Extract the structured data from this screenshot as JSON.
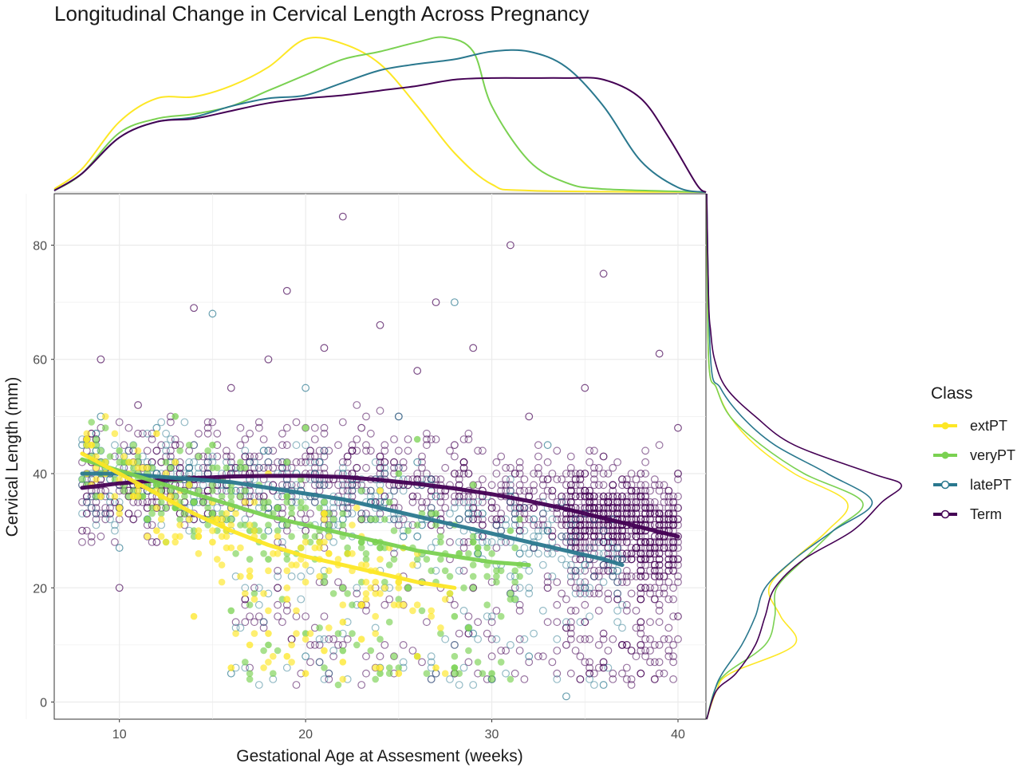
{
  "chart_data": {
    "type": "scatter",
    "title": "Longitudinal Change in Cervical Length Across Pregnancy",
    "xlabel": "Gestational Age at Assesment (weeks)",
    "ylabel": "Cervical Length (mm)",
    "xlim": [
      6.5,
      41.5
    ],
    "ylim": [
      -3,
      89
    ],
    "x_ticks": [
      10,
      20,
      30,
      40
    ],
    "y_ticks": [
      0,
      20,
      40,
      60,
      80
    ],
    "grid": true,
    "legend": {
      "title": "Class",
      "placement": "right",
      "entries": [
        "extPT",
        "veryPT",
        "latePT",
        "Term"
      ]
    },
    "series": [
      {
        "name": "extPT",
        "color": "#fde725",
        "point_style": "filled",
        "trend": [
          [
            8,
            43.5
          ],
          [
            10,
            40
          ],
          [
            12,
            36.5
          ],
          [
            14,
            33
          ],
          [
            16,
            30
          ],
          [
            18,
            27.5
          ],
          [
            20,
            25.5
          ],
          [
            22,
            24
          ],
          [
            24,
            22.5
          ],
          [
            26,
            21
          ],
          [
            28,
            20
          ]
        ],
        "sample_points": [
          [
            9,
            36
          ],
          [
            10,
            34
          ],
          [
            11,
            38
          ],
          [
            12,
            30
          ],
          [
            13,
            42
          ],
          [
            14,
            15
          ],
          [
            15,
            28
          ],
          [
            16,
            6
          ],
          [
            17,
            10
          ],
          [
            18,
            12
          ],
          [
            19,
            8
          ],
          [
            20,
            5
          ],
          [
            21,
            9
          ],
          [
            22,
            7
          ],
          [
            23,
            11
          ],
          [
            24,
            6
          ],
          [
            25,
            5
          ],
          [
            26,
            8
          ],
          [
            27,
            6
          ],
          [
            12,
            47
          ],
          [
            15,
            35
          ],
          [
            18,
            40
          ],
          [
            21,
            33
          ],
          [
            24,
            37
          ],
          [
            17,
            22
          ],
          [
            19,
            18
          ],
          [
            22,
            14
          ]
        ],
        "x_density": [
          [
            6.5,
            0.02
          ],
          [
            8,
            0.15
          ],
          [
            10,
            0.45
          ],
          [
            12,
            0.6
          ],
          [
            14,
            0.61
          ],
          [
            16,
            0.68
          ],
          [
            18,
            0.8
          ],
          [
            20,
            0.98
          ],
          [
            22,
            0.95
          ],
          [
            24,
            0.82
          ],
          [
            26,
            0.55
          ],
          [
            28,
            0.25
          ],
          [
            30,
            0.05
          ],
          [
            32,
            0.01
          ],
          [
            41.5,
            0
          ]
        ],
        "y_density": [
          [
            -3,
            0
          ],
          [
            2,
            0.05
          ],
          [
            5,
            0.12
          ],
          [
            10,
            0.45
          ],
          [
            15,
            0.38
          ],
          [
            20,
            0.32
          ],
          [
            25,
            0.45
          ],
          [
            30,
            0.62
          ],
          [
            35,
            0.72
          ],
          [
            40,
            0.45
          ],
          [
            45,
            0.25
          ],
          [
            50,
            0.12
          ],
          [
            55,
            0.05
          ],
          [
            60,
            0.01
          ],
          [
            89,
            0
          ]
        ]
      },
      {
        "name": "veryPT",
        "color": "#7ad151",
        "point_style": "filled",
        "trend": [
          [
            8,
            42.5
          ],
          [
            10,
            40.5
          ],
          [
            12,
            38.5
          ],
          [
            14,
            36.5
          ],
          [
            16,
            34.5
          ],
          [
            18,
            32.5
          ],
          [
            20,
            31
          ],
          [
            22,
            29.5
          ],
          [
            24,
            28
          ],
          [
            26,
            26.5
          ],
          [
            28,
            25.5
          ],
          [
            30,
            24.5
          ],
          [
            32,
            24
          ]
        ],
        "sample_points": [
          [
            9,
            40
          ],
          [
            10,
            44
          ],
          [
            12,
            38
          ],
          [
            14,
            35
          ],
          [
            15,
            45
          ],
          [
            16,
            16
          ],
          [
            17,
            30
          ],
          [
            18,
            10
          ],
          [
            19,
            42
          ],
          [
            20,
            12
          ],
          [
            21,
            35
          ],
          [
            22,
            9
          ],
          [
            23,
            28
          ],
          [
            24,
            5
          ],
          [
            25,
            40
          ],
          [
            26,
            8
          ],
          [
            27,
            33
          ],
          [
            28,
            6
          ],
          [
            29,
            38
          ],
          [
            30,
            5
          ],
          [
            31,
            30
          ],
          [
            13,
            50
          ],
          [
            20,
            48
          ],
          [
            26,
            46
          ],
          [
            18,
            25
          ],
          [
            22,
            20
          ],
          [
            28,
            15
          ]
        ],
        "x_density": [
          [
            6.5,
            0.01
          ],
          [
            8,
            0.12
          ],
          [
            10,
            0.38
          ],
          [
            12,
            0.47
          ],
          [
            14,
            0.5
          ],
          [
            16,
            0.55
          ],
          [
            18,
            0.65
          ],
          [
            20,
            0.75
          ],
          [
            22,
            0.85
          ],
          [
            24,
            0.9
          ],
          [
            26,
            0.96
          ],
          [
            27.5,
            0.99
          ],
          [
            29,
            0.9
          ],
          [
            30,
            0.55
          ],
          [
            32,
            0.2
          ],
          [
            34,
            0.06
          ],
          [
            36,
            0.02
          ],
          [
            41.5,
            0
          ]
        ],
        "y_density": [
          [
            -3,
            0
          ],
          [
            2,
            0.04
          ],
          [
            5,
            0.1
          ],
          [
            10,
            0.3
          ],
          [
            15,
            0.35
          ],
          [
            20,
            0.36
          ],
          [
            25,
            0.5
          ],
          [
            30,
            0.65
          ],
          [
            35,
            0.8
          ],
          [
            40,
            0.5
          ],
          [
            45,
            0.28
          ],
          [
            50,
            0.12
          ],
          [
            55,
            0.05
          ],
          [
            60,
            0.01
          ],
          [
            89,
            0
          ]
        ]
      },
      {
        "name": "latePT",
        "color": "#2a788e",
        "point_style": "hollow",
        "trend": [
          [
            8,
            40
          ],
          [
            10,
            40
          ],
          [
            12,
            39.5
          ],
          [
            14,
            39
          ],
          [
            16,
            38.5
          ],
          [
            18,
            37.5
          ],
          [
            20,
            36.5
          ],
          [
            22,
            35.5
          ],
          [
            24,
            34
          ],
          [
            26,
            32.5
          ],
          [
            28,
            31
          ],
          [
            30,
            29.5
          ],
          [
            32,
            28
          ],
          [
            34,
            26.5
          ],
          [
            36,
            25
          ],
          [
            37,
            24
          ]
        ],
        "sample_points": [
          [
            8,
            45
          ],
          [
            9,
            50
          ],
          [
            10,
            27
          ],
          [
            12,
            48
          ],
          [
            14,
            35
          ],
          [
            15,
            68
          ],
          [
            16,
            5
          ],
          [
            18,
            30
          ],
          [
            20,
            8
          ],
          [
            22,
            40
          ],
          [
            24,
            6
          ],
          [
            26,
            42
          ],
          [
            28,
            70
          ],
          [
            29,
            12
          ],
          [
            30,
            4
          ],
          [
            31,
            36
          ],
          [
            32,
            8
          ],
          [
            33,
            30
          ],
          [
            34,
            1
          ],
          [
            35,
            20
          ],
          [
            36,
            3
          ],
          [
            37,
            25
          ],
          [
            20,
            55
          ],
          [
            25,
            50
          ],
          [
            33,
            45
          ]
        ],
        "x_density": [
          [
            6.5,
            0.01
          ],
          [
            8,
            0.12
          ],
          [
            10,
            0.35
          ],
          [
            12,
            0.45
          ],
          [
            14,
            0.48
          ],
          [
            16,
            0.55
          ],
          [
            18,
            0.6
          ],
          [
            20,
            0.62
          ],
          [
            22,
            0.7
          ],
          [
            24,
            0.78
          ],
          [
            26,
            0.82
          ],
          [
            28,
            0.85
          ],
          [
            30,
            0.9
          ],
          [
            32,
            0.9
          ],
          [
            34,
            0.8
          ],
          [
            36,
            0.55
          ],
          [
            38,
            0.2
          ],
          [
            40,
            0.03
          ],
          [
            41.5,
            0
          ]
        ],
        "y_density": [
          [
            -3,
            0
          ],
          [
            2,
            0.04
          ],
          [
            5,
            0.08
          ],
          [
            10,
            0.18
          ],
          [
            15,
            0.25
          ],
          [
            20,
            0.3
          ],
          [
            25,
            0.45
          ],
          [
            30,
            0.65
          ],
          [
            35,
            0.85
          ],
          [
            40,
            0.62
          ],
          [
            45,
            0.35
          ],
          [
            50,
            0.18
          ],
          [
            55,
            0.07
          ],
          [
            60,
            0.02
          ],
          [
            89,
            0
          ]
        ]
      },
      {
        "name": "Term",
        "color": "#440154",
        "point_style": "hollow",
        "trend": [
          [
            8,
            37.5
          ],
          [
            10,
            38.3
          ],
          [
            12,
            38.8
          ],
          [
            14,
            39.2
          ],
          [
            16,
            39.5
          ],
          [
            18,
            39.6
          ],
          [
            20,
            39.6
          ],
          [
            22,
            39.4
          ],
          [
            24,
            38.9
          ],
          [
            26,
            38.2
          ],
          [
            28,
            37.4
          ],
          [
            30,
            36.4
          ],
          [
            32,
            35.2
          ],
          [
            34,
            33.8
          ],
          [
            36,
            32.2
          ],
          [
            38,
            30.6
          ],
          [
            40,
            29
          ]
        ],
        "sample_points": [
          [
            8,
            30
          ],
          [
            9,
            60
          ],
          [
            10,
            20
          ],
          [
            11,
            52
          ],
          [
            12,
            28
          ],
          [
            13,
            45
          ],
          [
            14,
            69
          ],
          [
            15,
            33
          ],
          [
            16,
            55
          ],
          [
            17,
            40
          ],
          [
            18,
            60
          ],
          [
            19,
            72
          ],
          [
            20,
            30
          ],
          [
            21,
            62
          ],
          [
            22,
            85
          ],
          [
            23,
            48
          ],
          [
            24,
            66
          ],
          [
            25,
            38
          ],
          [
            26,
            58
          ],
          [
            27,
            70
          ],
          [
            28,
            45
          ],
          [
            29,
            62
          ],
          [
            30,
            35
          ],
          [
            31,
            80
          ],
          [
            32,
            50
          ],
          [
            33,
            20
          ],
          [
            34,
            10
          ],
          [
            35,
            55
          ],
          [
            36,
            75
          ],
          [
            37,
            30
          ],
          [
            38,
            5
          ],
          [
            39,
            61
          ],
          [
            40,
            15
          ],
          [
            40,
            48
          ],
          [
            38,
            40
          ],
          [
            36,
            12
          ],
          [
            39,
            25
          ]
        ],
        "x_density": [
          [
            6.5,
            0.01
          ],
          [
            8,
            0.12
          ],
          [
            10,
            0.35
          ],
          [
            12,
            0.45
          ],
          [
            14,
            0.47
          ],
          [
            16,
            0.52
          ],
          [
            18,
            0.57
          ],
          [
            20,
            0.6
          ],
          [
            22,
            0.62
          ],
          [
            24,
            0.65
          ],
          [
            26,
            0.68
          ],
          [
            28,
            0.72
          ],
          [
            30,
            0.73
          ],
          [
            32,
            0.73
          ],
          [
            34,
            0.73
          ],
          [
            36,
            0.72
          ],
          [
            38,
            0.6
          ],
          [
            39.5,
            0.35
          ],
          [
            41,
            0.05
          ],
          [
            41.5,
            0
          ]
        ],
        "y_density": [
          [
            -3,
            0
          ],
          [
            2,
            0.05
          ],
          [
            5,
            0.15
          ],
          [
            10,
            0.25
          ],
          [
            15,
            0.3
          ],
          [
            20,
            0.35
          ],
          [
            25,
            0.5
          ],
          [
            30,
            0.75
          ],
          [
            35,
            0.9
          ],
          [
            38,
            1
          ],
          [
            40,
            0.85
          ],
          [
            45,
            0.45
          ],
          [
            50,
            0.25
          ],
          [
            55,
            0.1
          ],
          [
            60,
            0.04
          ],
          [
            65,
            0.02
          ],
          [
            70,
            0.01
          ],
          [
            89,
            0
          ]
        ]
      }
    ]
  }
}
